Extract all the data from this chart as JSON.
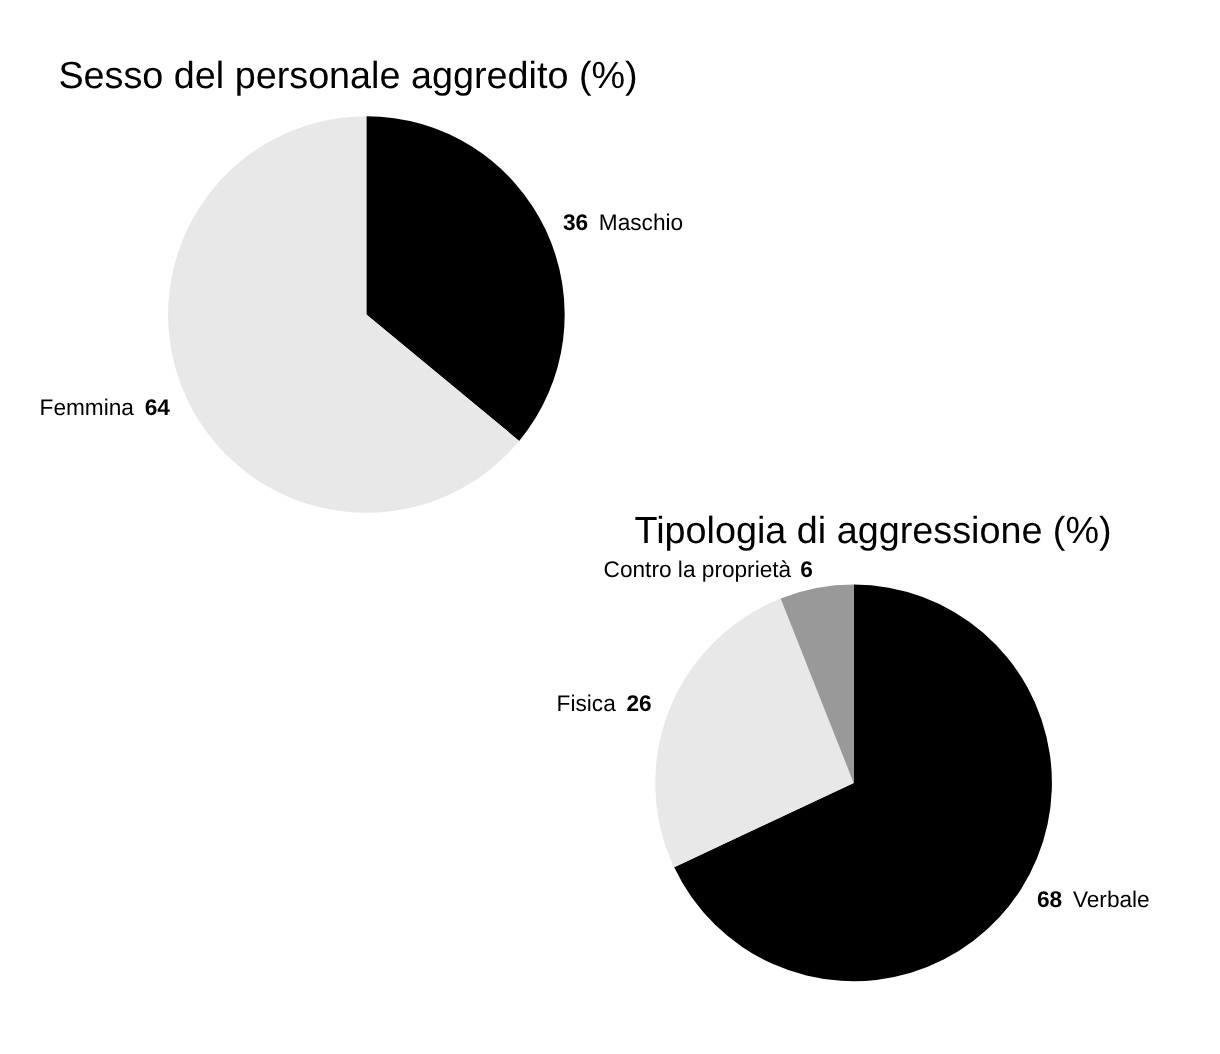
{
  "chart_data": [
    {
      "type": "pie",
      "title": "Sesso del personale aggredito (%)",
      "categories": [
        "Maschio",
        "Femmina"
      ],
      "values": [
        36,
        64
      ],
      "colors": [
        "#000000",
        "#e8e8e8"
      ],
      "data_labels": true
    },
    {
      "type": "pie",
      "title": "Tipologia di aggressione (%)",
      "categories": [
        "Verbale",
        "Fisica",
        "Contro la proprietà"
      ],
      "values": [
        68,
        26,
        6
      ],
      "colors": [
        "#000000",
        "#e8e8e8",
        "#999999"
      ],
      "data_labels": true
    }
  ]
}
